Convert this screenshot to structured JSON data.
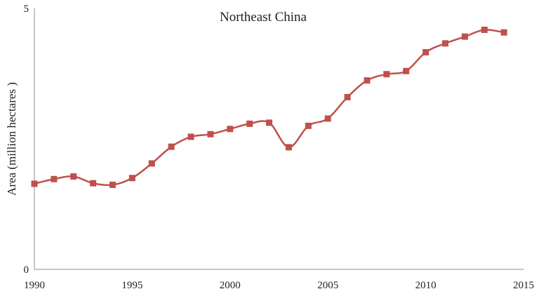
{
  "chart_data": {
    "type": "line",
    "title": "Northeast China",
    "xlabel": "",
    "ylabel": "Area (million hectares )",
    "xlim": [
      1990,
      2015
    ],
    "ylim": [
      0,
      5
    ],
    "x_ticks": [
      "1990",
      "1995",
      "2000",
      "2005",
      "2010",
      "2015"
    ],
    "y_ticks": [
      "0",
      "5"
    ],
    "grid": false,
    "legend": "none",
    "line_color": "#c0504d",
    "marker": "square",
    "series": [
      {
        "x": [
          1990,
          1991,
          1992,
          1993,
          1994,
          1995,
          1996,
          1997,
          1998,
          1999,
          2000,
          2001,
          2002,
          2003,
          2004,
          2005,
          2006,
          2007,
          2008,
          2009,
          2010,
          2011,
          2012,
          2013,
          2014
        ],
        "values": [
          1.64,
          1.73,
          1.78,
          1.65,
          1.62,
          1.75,
          2.03,
          2.35,
          2.54,
          2.59,
          2.69,
          2.79,
          2.81,
          2.34,
          2.75,
          2.89,
          3.3,
          3.62,
          3.74,
          3.8,
          4.16,
          4.33,
          4.46,
          4.59,
          4.54
        ]
      }
    ]
  }
}
